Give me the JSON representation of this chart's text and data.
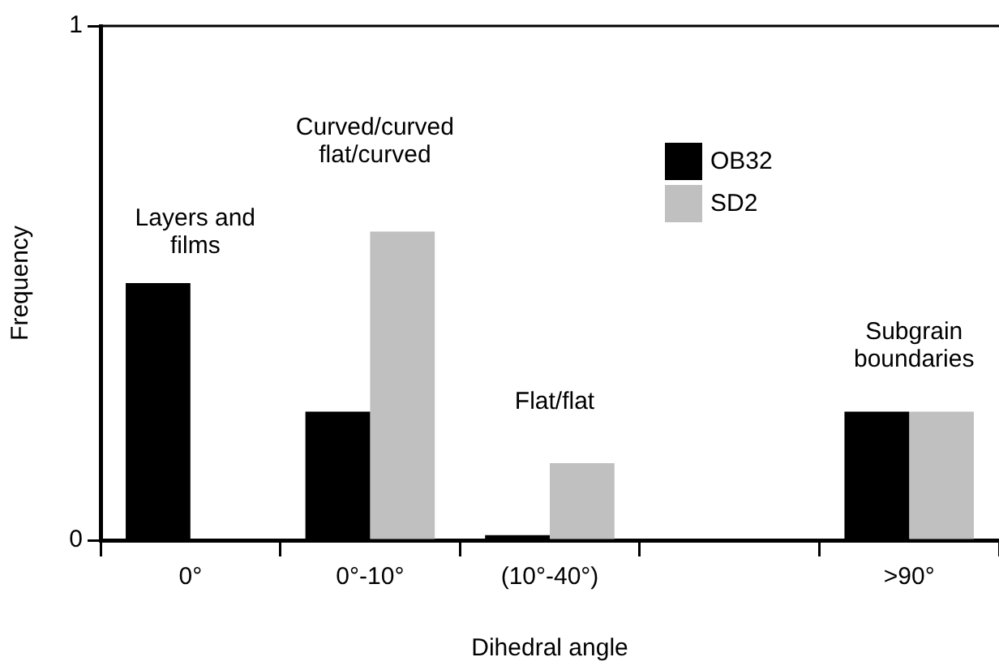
{
  "chart_data": {
    "type": "bar",
    "xlabel": "Dihedral angle",
    "ylabel": "Frequency",
    "categories": [
      "0°",
      "0°-10°",
      "(10°-40°)",
      null,
      ">90°"
    ],
    "series": [
      {
        "name": "OB32",
        "color": "#000000",
        "values": [
          0.5,
          0.25,
          0.01,
          0,
          0.25
        ]
      },
      {
        "name": "SD2",
        "color": "#c0c0c0",
        "values": [
          0,
          0.6,
          0.15,
          0,
          0.25
        ]
      }
    ],
    "ylim": [
      0,
      1
    ],
    "yticks": [
      0,
      1
    ],
    "grid": false,
    "legend": "top right",
    "annotations": [
      "Layers and films",
      "Curved/curved flat/curved",
      "Flat/flat",
      "Subgrain boundaries"
    ]
  }
}
